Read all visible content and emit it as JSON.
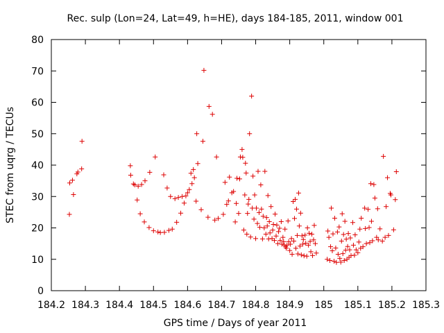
{
  "chart_data": {
    "type": "scatter",
    "title": "Rec. sulp (Lon=24, Lat=49, h=HE), days 184-185, 2011, window 001",
    "xlabel": "GPS time / Days of year 2011",
    "ylabel": "STEC from uqrg / TECUs",
    "xlim": [
      184.2,
      185.3
    ],
    "ylim": [
      0,
      80
    ],
    "xticks": [
      184.2,
      184.3,
      184.4,
      184.5,
      184.6,
      184.7,
      184.8,
      184.9,
      185,
      185.1,
      185.2,
      185.3
    ],
    "xtick_labels": [
      "184.2",
      "184.3",
      "184.4",
      "184.5",
      "184.6",
      "184.7",
      "184.8",
      "184.9",
      "185",
      "185.1",
      "185.2",
      "185.3"
    ],
    "yticks": [
      0,
      10,
      20,
      30,
      40,
      50,
      60,
      70,
      80
    ],
    "ytick_labels": [
      "0",
      "10",
      "20",
      "30",
      "40",
      "50",
      "60",
      "70",
      "80"
    ],
    "grid": false,
    "marker": "+",
    "color": "#dd0000",
    "series": [
      {
        "name": "STEC",
        "points": [
          [
            184.253,
            24.3
          ],
          [
            184.254,
            34.3
          ],
          [
            184.262,
            35.2
          ],
          [
            184.265,
            30.6
          ],
          [
            184.275,
            37.2
          ],
          [
            184.278,
            37.8
          ],
          [
            184.289,
            38.8
          ],
          [
            184.29,
            47.6
          ],
          [
            184.432,
            39.8
          ],
          [
            184.433,
            36.8
          ],
          [
            184.441,
            34.0
          ],
          [
            184.445,
            33.7
          ],
          [
            184.452,
            28.9
          ],
          [
            184.455,
            33.3
          ],
          [
            184.461,
            24.5
          ],
          [
            184.465,
            33.8
          ],
          [
            184.473,
            21.9
          ],
          [
            184.475,
            35.0
          ],
          [
            184.487,
            20.1
          ],
          [
            184.489,
            37.7
          ],
          [
            184.5,
            19.1
          ],
          [
            184.505,
            42.6
          ],
          [
            184.513,
            18.7
          ],
          [
            184.52,
            18.5
          ],
          [
            184.53,
            36.9
          ],
          [
            184.532,
            18.6
          ],
          [
            184.54,
            32.7
          ],
          [
            184.545,
            19.2
          ],
          [
            184.55,
            30.0
          ],
          [
            184.555,
            19.6
          ],
          [
            184.563,
            29.3
          ],
          [
            184.568,
            21.8
          ],
          [
            184.573,
            29.7
          ],
          [
            184.58,
            24.7
          ],
          [
            184.584,
            30.0
          ],
          [
            184.59,
            27.9
          ],
          [
            184.595,
            30.2
          ],
          [
            184.6,
            31.2
          ],
          [
            184.605,
            32.2
          ],
          [
            184.61,
            37.4
          ],
          [
            184.613,
            34.1
          ],
          [
            184.617,
            38.6
          ],
          [
            184.62,
            36.0
          ],
          [
            184.625,
            28.5
          ],
          [
            184.627,
            50.0
          ],
          [
            184.63,
            40.5
          ],
          [
            184.64,
            25.8
          ],
          [
            184.645,
            47.6
          ],
          [
            184.648,
            70.2
          ],
          [
            184.66,
            23.4
          ],
          [
            184.663,
            58.7
          ],
          [
            184.673,
            56.2
          ],
          [
            184.68,
            22.5
          ],
          [
            184.685,
            42.6
          ],
          [
            184.69,
            23.0
          ],
          [
            184.705,
            24.3
          ],
          [
            184.71,
            34.5
          ],
          [
            184.715,
            27.5
          ],
          [
            184.72,
            28.6
          ],
          [
            184.723,
            36.2
          ],
          [
            184.73,
            31.2
          ],
          [
            184.735,
            31.6
          ],
          [
            184.74,
            21.9
          ],
          [
            184.743,
            27.8
          ],
          [
            184.745,
            35.8
          ],
          [
            184.75,
            24.6
          ],
          [
            184.753,
            35.6
          ],
          [
            184.755,
            42.6
          ],
          [
            184.76,
            45.0
          ],
          [
            184.762,
            42.5
          ],
          [
            184.765,
            19.3
          ],
          [
            184.768,
            30.5
          ],
          [
            184.77,
            40.6
          ],
          [
            184.772,
            37.5
          ],
          [
            184.774,
            18.0
          ],
          [
            184.776,
            24.6
          ],
          [
            184.778,
            27.6
          ],
          [
            184.78,
            29.1
          ],
          [
            184.782,
            50.0
          ],
          [
            184.785,
            17.1
          ],
          [
            184.788,
            62.0
          ],
          [
            184.79,
            26.3
          ],
          [
            184.792,
            36.5
          ],
          [
            184.795,
            22.8
          ],
          [
            184.797,
            30.5
          ],
          [
            184.8,
            16.6
          ],
          [
            184.802,
            26.3
          ],
          [
            184.805,
            21.4
          ],
          [
            184.807,
            38.0
          ],
          [
            184.81,
            24.9
          ],
          [
            184.812,
            20.2
          ],
          [
            184.815,
            33.7
          ],
          [
            184.817,
            26.0
          ],
          [
            184.82,
            16.5
          ],
          [
            184.822,
            23.7
          ],
          [
            184.825,
            20.0
          ],
          [
            184.827,
            38.0
          ],
          [
            184.83,
            18.0
          ],
          [
            184.832,
            23.3
          ],
          [
            184.834,
            20.6
          ],
          [
            184.836,
            30.3
          ],
          [
            184.838,
            16.5
          ],
          [
            184.84,
            22.0
          ],
          [
            184.842,
            18.4
          ],
          [
            184.845,
            26.8
          ],
          [
            184.848,
            16.6
          ],
          [
            184.85,
            19.3
          ],
          [
            184.852,
            21.1
          ],
          [
            184.855,
            16.0
          ],
          [
            184.857,
            24.4
          ],
          [
            184.86,
            17.4
          ],
          [
            184.862,
            20.9
          ],
          [
            184.865,
            15.0
          ],
          [
            184.867,
            18.8
          ],
          [
            184.87,
            19.9
          ],
          [
            184.872,
            16.0
          ],
          [
            184.875,
            22.0
          ],
          [
            184.877,
            14.8
          ],
          [
            184.88,
            17.0
          ],
          [
            184.882,
            15.6
          ],
          [
            184.884,
            14.5
          ],
          [
            184.886,
            19.6
          ],
          [
            184.888,
            14.0
          ],
          [
            184.89,
            13.5
          ],
          [
            184.892,
            14.5
          ],
          [
            184.895,
            22.2
          ],
          [
            184.897,
            15.6
          ],
          [
            184.9,
            12.8
          ],
          [
            184.902,
            14.8
          ],
          [
            184.905,
            16.6
          ],
          [
            184.907,
            11.6
          ],
          [
            184.91,
            28.4
          ],
          [
            184.912,
            15.8
          ],
          [
            184.914,
            23.0
          ],
          [
            184.916,
            29.1
          ],
          [
            184.918,
            13.5
          ],
          [
            184.92,
            26.0
          ],
          [
            184.922,
            17.6
          ],
          [
            184.924,
            11.7
          ],
          [
            184.926,
            31.1
          ],
          [
            184.928,
            20.6
          ],
          [
            184.93,
            14.2
          ],
          [
            184.932,
            24.7
          ],
          [
            184.934,
            11.4
          ],
          [
            184.936,
            17.5
          ],
          [
            184.938,
            14.8
          ],
          [
            184.94,
            16.3
          ],
          [
            184.942,
            11.1
          ],
          [
            184.945,
            17.7
          ],
          [
            184.947,
            15.1
          ],
          [
            184.95,
            11.0
          ],
          [
            184.952,
            20.0
          ],
          [
            184.955,
            14.5
          ],
          [
            184.957,
            18.3
          ],
          [
            184.96,
            15.7
          ],
          [
            184.962,
            12.4
          ],
          [
            184.965,
            18.0
          ],
          [
            184.967,
            11.2
          ],
          [
            184.97,
            16.2
          ],
          [
            184.972,
            20.8
          ],
          [
            184.975,
            15.0
          ],
          [
            184.978,
            12.0
          ],
          [
            185.01,
            10.0
          ],
          [
            185.012,
            19.0
          ],
          [
            185.015,
            17.0
          ],
          [
            185.018,
            9.6
          ],
          [
            185.02,
            14.0
          ],
          [
            185.022,
            26.3
          ],
          [
            185.025,
            12.7
          ],
          [
            185.027,
            18.1
          ],
          [
            185.03,
            9.4
          ],
          [
            185.032,
            23.1
          ],
          [
            185.035,
            13.6
          ],
          [
            185.037,
            9.0
          ],
          [
            185.04,
            18.7
          ],
          [
            185.042,
            11.6
          ],
          [
            185.045,
            20.3
          ],
          [
            185.047,
            10.3
          ],
          [
            185.05,
            9.1
          ],
          [
            185.052,
            15.8
          ],
          [
            185.054,
            24.5
          ],
          [
            185.056,
            11.8
          ],
          [
            185.058,
            17.9
          ],
          [
            185.06,
            9.6
          ],
          [
            185.062,
            22.1
          ],
          [
            185.064,
            12.9
          ],
          [
            185.066,
            16.4
          ],
          [
            185.068,
            10.0
          ],
          [
            185.07,
            14.1
          ],
          [
            185.072,
            18.2
          ],
          [
            185.074,
            10.6
          ],
          [
            185.076,
            13.0
          ],
          [
            185.078,
            16.8
          ],
          [
            185.08,
            11.2
          ],
          [
            185.085,
            21.7
          ],
          [
            185.087,
            14.5
          ],
          [
            185.09,
            11.3
          ],
          [
            185.092,
            17.8
          ],
          [
            185.095,
            13.0
          ],
          [
            185.1,
            12.1
          ],
          [
            185.103,
            15.5
          ],
          [
            185.106,
            19.6
          ],
          [
            185.108,
            13.5
          ],
          [
            185.11,
            23.1
          ],
          [
            185.115,
            14.0
          ],
          [
            185.12,
            26.3
          ],
          [
            185.122,
            19.8
          ],
          [
            185.125,
            15.0
          ],
          [
            185.13,
            25.9
          ],
          [
            185.133,
            20.1
          ],
          [
            185.135,
            15.3
          ],
          [
            185.138,
            34.1
          ],
          [
            185.14,
            22.1
          ],
          [
            185.143,
            15.9
          ],
          [
            185.147,
            33.8
          ],
          [
            185.15,
            29.5
          ],
          [
            185.155,
            17.0
          ],
          [
            185.158,
            26.1
          ],
          [
            185.16,
            16.2
          ],
          [
            185.165,
            19.7
          ],
          [
            185.172,
            15.8
          ],
          [
            185.175,
            42.8
          ],
          [
            185.18,
            17.0
          ],
          [
            185.183,
            26.8
          ],
          [
            185.187,
            36.0
          ],
          [
            185.19,
            17.6
          ],
          [
            185.195,
            31.0
          ],
          [
            185.197,
            30.5
          ],
          [
            185.205,
            19.4
          ],
          [
            185.21,
            29.0
          ],
          [
            185.213,
            37.9
          ]
        ]
      }
    ]
  }
}
